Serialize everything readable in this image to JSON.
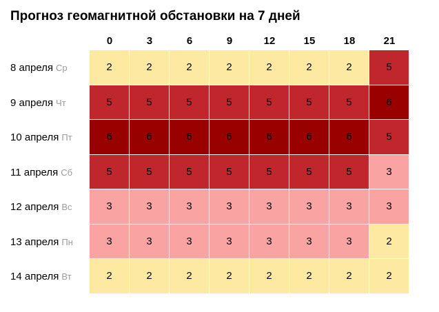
{
  "title": "Прогноз геомагнитной обстановки на 7 дней",
  "hours": [
    "0",
    "3",
    "6",
    "9",
    "12",
    "15",
    "18",
    "21"
  ],
  "days": [
    {
      "date": "8 апреля",
      "dow": "Ср",
      "values": [
        2,
        2,
        2,
        2,
        2,
        2,
        2,
        5
      ]
    },
    {
      "date": "9 апреля",
      "dow": "Чт",
      "values": [
        5,
        5,
        5,
        5,
        5,
        5,
        5,
        6
      ]
    },
    {
      "date": "10 апреля",
      "dow": "Пт",
      "values": [
        6,
        6,
        6,
        6,
        6,
        6,
        6,
        5
      ]
    },
    {
      "date": "11 апреля",
      "dow": "Сб",
      "values": [
        5,
        5,
        5,
        5,
        5,
        5,
        5,
        3
      ]
    },
    {
      "date": "12 апреля",
      "dow": "Вс",
      "values": [
        3,
        3,
        3,
        3,
        3,
        3,
        3,
        3
      ]
    },
    {
      "date": "13 апреля",
      "dow": "Пн",
      "values": [
        3,
        3,
        3,
        3,
        3,
        3,
        3,
        2
      ]
    },
    {
      "date": "14 апреля",
      "dow": "Вт",
      "values": [
        2,
        2,
        2,
        2,
        2,
        2,
        2,
        2
      ]
    }
  ],
  "colors": {
    "2": "#fde9a2",
    "3": "#f9a3a3",
    "5": "#c0272d",
    "6": "#990000"
  }
}
